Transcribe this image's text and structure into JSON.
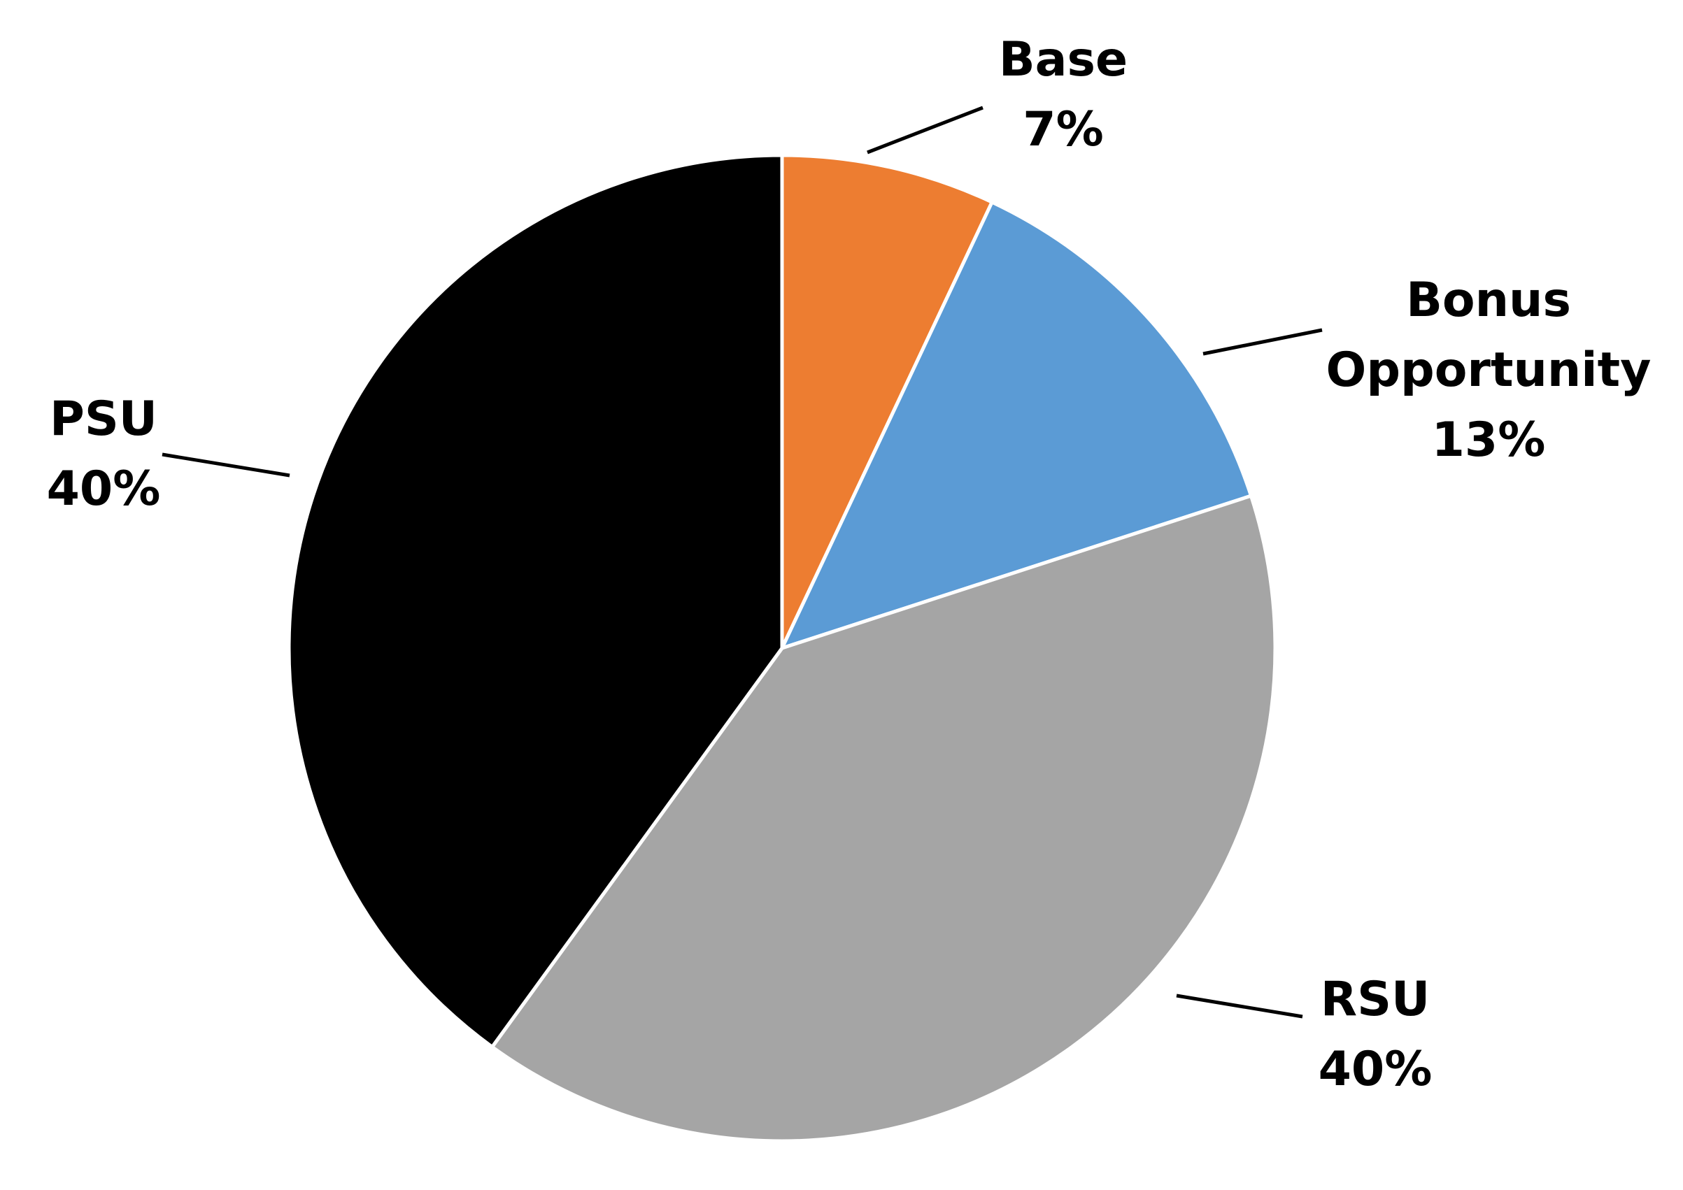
{
  "chart_data": {
    "type": "pie",
    "title": "",
    "slices": [
      {
        "label": [
          "Base"
        ],
        "value": 7,
        "value_label": "7%",
        "color": "#ED7D31"
      },
      {
        "label": [
          "Bonus",
          "Opportunity"
        ],
        "value": 13,
        "value_label": "13%",
        "color": "#5B9BD5"
      },
      {
        "label": [
          "RSU"
        ],
        "value": 40,
        "value_label": "40%",
        "color": "#A5A5A5"
      },
      {
        "label": [
          "PSU"
        ],
        "value": 40,
        "value_label": "40%",
        "color": "#000000"
      }
    ],
    "start_angle": "12 o'clock",
    "direction": "clockwise",
    "legend": "none",
    "data_labels": "outside with leader lines"
  }
}
